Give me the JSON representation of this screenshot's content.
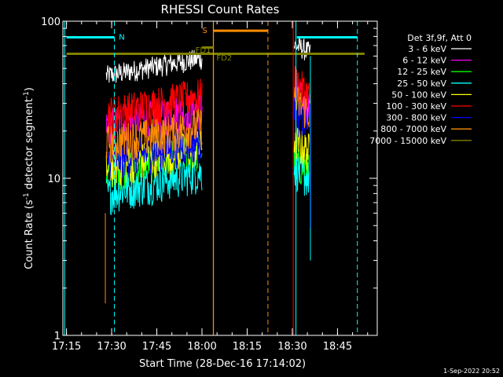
{
  "chart_data": {
    "type": "line",
    "title": "RHESSI Count Rates",
    "xlabel": "Start Time (28-Dec-16 17:14:02)",
    "ylabel_main": "Count Rate (s",
    "ylabel_sup1": "-1",
    "ylabel_mid": " detector segment",
    "ylabel_sup2": "-1",
    "ylabel_end": ")",
    "y_scale": "log",
    "ylim": [
      1,
      100
    ],
    "xlim_minutes": [
      17.23,
      18.97
    ],
    "x_ticks": [
      {
        "label": "17:15",
        "t": 17.25
      },
      {
        "label": "17:30",
        "t": 17.5
      },
      {
        "label": "17:45",
        "t": 17.75
      },
      {
        "label": "18:00",
        "t": 18.0
      },
      {
        "label": "18:15",
        "t": 18.25
      },
      {
        "label": "18:30",
        "t": 18.5
      },
      {
        "label": "18:45",
        "t": 18.75
      }
    ],
    "y_ticks": [
      {
        "label": "1",
        "v": 1
      },
      {
        "label": "10",
        "v": 10
      },
      {
        "label": "100",
        "v": 100
      }
    ],
    "legend_title": "Det 3f,9f, Att 0",
    "legend_position": "right",
    "series": [
      {
        "name": "3 - 6 keV",
        "color": "#ffffff",
        "seg1": [
          [
            17.47,
            45
          ],
          [
            17.75,
            52
          ],
          [
            18.0,
            58
          ]
        ],
        "seg2": [
          [
            18.51,
            70
          ],
          [
            18.55,
            68
          ],
          [
            18.6,
            63
          ]
        ]
      },
      {
        "name": "6 - 12 keV",
        "color": "#ff00ff",
        "seg1": [
          [
            17.47,
            22
          ],
          [
            17.75,
            25
          ],
          [
            18.0,
            28
          ]
        ],
        "seg2": [
          [
            18.51,
            35
          ],
          [
            18.55,
            32
          ],
          [
            18.6,
            27
          ]
        ]
      },
      {
        "name": "12 - 25 keV",
        "color": "#00ff00",
        "seg1": [
          [
            17.47,
            11
          ],
          [
            17.75,
            13
          ],
          [
            18.0,
            15
          ]
        ],
        "seg2": [
          [
            18.51,
            13
          ],
          [
            18.55,
            12
          ],
          [
            18.6,
            11
          ]
        ]
      },
      {
        "name": "25 - 50 keV",
        "color": "#00ffff",
        "seg1": [
          [
            17.47,
            8
          ],
          [
            17.75,
            9.5
          ],
          [
            18.0,
            11
          ]
        ],
        "seg2": [
          [
            18.51,
            12
          ],
          [
            18.55,
            10.5
          ],
          [
            18.6,
            10
          ]
        ]
      },
      {
        "name": "50 - 100 keV",
        "color": "#ffff00",
        "seg1": [
          [
            17.47,
            11.5
          ],
          [
            17.75,
            14
          ],
          [
            18.0,
            16
          ]
        ],
        "seg2": [
          [
            18.51,
            18
          ],
          [
            18.55,
            16
          ],
          [
            18.6,
            15
          ]
        ]
      },
      {
        "name": "100 - 300 keV",
        "color": "#ff0000",
        "seg1": [
          [
            17.47,
            26
          ],
          [
            17.75,
            30
          ],
          [
            18.0,
            34
          ]
        ],
        "seg2": [
          [
            18.51,
            42
          ],
          [
            18.55,
            38
          ],
          [
            18.6,
            33
          ]
        ]
      },
      {
        "name": "300 - 800 keV",
        "color": "#0000ff",
        "seg1": [
          [
            17.47,
            13
          ],
          [
            17.75,
            15
          ],
          [
            18.0,
            17.5
          ]
        ],
        "seg2": [
          [
            18.51,
            27
          ],
          [
            18.55,
            24
          ],
          [
            18.6,
            22
          ]
        ]
      },
      {
        "name": "800 - 7000 keV",
        "color": "#ff8c00",
        "seg1": [
          [
            17.47,
            17
          ],
          [
            17.75,
            19
          ],
          [
            18.0,
            22
          ]
        ],
        "seg2": [
          [
            18.51,
            32
          ],
          [
            18.55,
            29
          ],
          [
            18.6,
            26
          ]
        ]
      },
      {
        "name": "7000 - 15000 keV",
        "color": "#808000",
        "flat": 62
      }
    ],
    "annotations": {
      "night_label": "N",
      "saa_label": "S",
      "fd1_label": "FD1",
      "fd2_label": "FD2"
    },
    "timestamp": "1-Sep-2022 20:52"
  }
}
